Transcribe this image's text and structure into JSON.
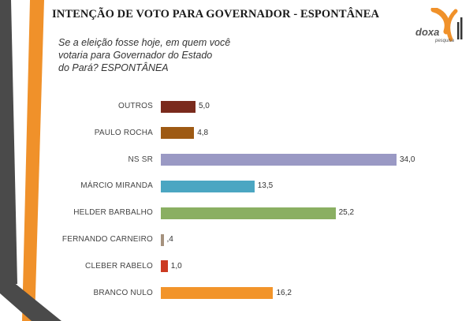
{
  "header": {
    "title": "INTENÇÃO DE VOTO PARA GOVERNADOR - ESPONTÂNEA",
    "question_lines": [
      "Se a eleição fosse hoje, em quem você",
      "votaria para Governador do Estado",
      "do Pará? ESPONTÂNEA"
    ]
  },
  "logo": {
    "text": "doxa",
    "sub": "pesquisa",
    "colors": [
      "#f0912a",
      "#333333"
    ]
  },
  "chart_data": {
    "type": "bar",
    "orientation": "horizontal",
    "categories": [
      "OUTROS",
      "PAULO ROCHA",
      "NS SR",
      "MÁRCIO MIRANDA",
      "HELDER BARBALHO",
      "FERNANDO CARNEIRO",
      "CLEBER RABELO",
      "BRANCO NULO"
    ],
    "values": [
      5.0,
      4.8,
      34.0,
      13.5,
      25.2,
      0.4,
      1.0,
      16.2
    ],
    "value_labels": [
      "5,0",
      "4,8",
      "34,0",
      "13,5",
      "25,2",
      ",4",
      "1,0",
      "16,2"
    ],
    "colors": [
      "#7a2a1c",
      "#9e5a14",
      "#9a99c4",
      "#4ba6c2",
      "#8aaf62",
      "#a6927e",
      "#cc3a22",
      "#f2942a"
    ],
    "xlim": [
      0,
      34
    ],
    "grid": false,
    "legend": false
  },
  "theme": {
    "accent": "#f0912a",
    "accent_dark": "#444444"
  }
}
